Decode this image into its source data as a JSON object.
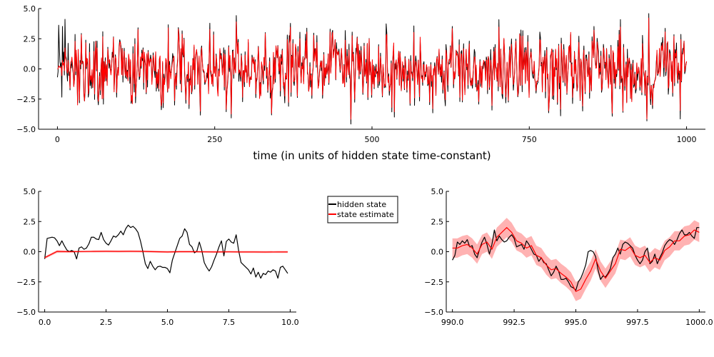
{
  "colors": {
    "hidden_state": "#000000",
    "state_estimate": "#ff0000",
    "band": "#ff0000"
  },
  "chart_data": [
    {
      "id": "top",
      "type": "line",
      "title": "",
      "xlabel": "time (in units of hidden state time-constant)",
      "ylabel": "",
      "xlim": [
        -30,
        1030
      ],
      "ylim": [
        -5,
        5
      ],
      "xticks": [
        0,
        250,
        500,
        750,
        1000
      ],
      "xtick_labels": [
        "0",
        "250",
        "500",
        "750",
        "1000"
      ],
      "yticks": [
        -5,
        -2.5,
        0,
        2.5,
        5
      ],
      "ytick_labels": [
        "−5.0",
        "−2.5",
        "0.0",
        "2.5",
        "5.0"
      ],
      "grid": false,
      "series": [
        {
          "name": "hidden state",
          "generator": "noise",
          "x_start": 0,
          "x_end": 1000,
          "n": 1000,
          "amplitude": 1.55,
          "seed": 7
        },
        {
          "name": "state estimate",
          "generator": "filtered",
          "x_start": 0,
          "x_end": 1000,
          "n": 1000,
          "warmup": 25
        }
      ]
    },
    {
      "id": "bottom-left",
      "type": "line",
      "title": "",
      "xlabel": "",
      "ylabel": "",
      "xlim": [
        -0.25,
        10.25
      ],
      "ylim": [
        -5,
        5
      ],
      "xticks": [
        0,
        2.5,
        5,
        7.5,
        10
      ],
      "xtick_labels": [
        "0.0",
        "2.5",
        "5.0",
        "7.5",
        "10.0"
      ],
      "yticks": [
        -5,
        -2.5,
        0,
        2.5,
        5
      ],
      "ytick_labels": [
        "−5.0",
        "−2.5",
        "0.0",
        "2.5",
        "5.0"
      ],
      "grid": false,
      "legend": {
        "position": "outside-top-right",
        "entries": [
          "hidden state",
          "state estimate"
        ]
      },
      "series": [
        {
          "name": "hidden state",
          "x": [
            0.0,
            0.1,
            0.2,
            0.3,
            0.4,
            0.5,
            0.6,
            0.7,
            0.8,
            0.9,
            1.0,
            1.1,
            1.2,
            1.3,
            1.4,
            1.5,
            1.6,
            1.7,
            1.8,
            1.9,
            2.0,
            2.1,
            2.2,
            2.3,
            2.4,
            2.5,
            2.6,
            2.7,
            2.8,
            2.9,
            3.0,
            3.1,
            3.2,
            3.3,
            3.4,
            3.5,
            3.6,
            3.7,
            3.8,
            3.9,
            4.0,
            4.1,
            4.2,
            4.3,
            4.4,
            4.5,
            4.6,
            4.7,
            4.8,
            4.9,
            5.0,
            5.1,
            5.2,
            5.3,
            5.4,
            5.5,
            5.6,
            5.7,
            5.8,
            5.9,
            6.0,
            6.1,
            6.2,
            6.3,
            6.4,
            6.5,
            6.6,
            6.7,
            6.8,
            6.9,
            7.0,
            7.1,
            7.2,
            7.3,
            7.4,
            7.5,
            7.6,
            7.7,
            7.8,
            7.9,
            8.0,
            8.1,
            8.2,
            8.3,
            8.4,
            8.5,
            8.6,
            8.7,
            8.8,
            8.9,
            9.0,
            9.1,
            9.2,
            9.3,
            9.4,
            9.5,
            9.6,
            9.7,
            9.8,
            9.9
          ],
          "values": [
            -0.6,
            1.1,
            1.15,
            1.2,
            1.15,
            0.9,
            0.5,
            0.9,
            0.5,
            0.15,
            0.0,
            0.1,
            0.0,
            -0.6,
            0.3,
            0.4,
            0.2,
            0.3,
            0.65,
            1.2,
            1.2,
            1.05,
            1.0,
            1.6,
            1.0,
            0.7,
            0.55,
            0.9,
            1.3,
            1.2,
            1.4,
            1.7,
            1.4,
            1.9,
            2.2,
            2.0,
            2.1,
            1.9,
            1.6,
            0.9,
            0.0,
            -1.0,
            -1.4,
            -0.8,
            -1.2,
            -1.5,
            -1.25,
            -1.2,
            -1.3,
            -1.3,
            -1.4,
            -1.75,
            -0.7,
            -0.1,
            0.5,
            1.1,
            1.3,
            1.9,
            1.6,
            0.6,
            0.4,
            -0.1,
            0.05,
            0.8,
            0.1,
            -0.9,
            -1.3,
            -1.6,
            -1.25,
            -0.7,
            -0.2,
            0.4,
            0.9,
            -0.35,
            0.85,
            1.05,
            0.8,
            0.7,
            1.4,
            0.1,
            -0.9,
            -1.1,
            -1.3,
            -1.5,
            -1.85,
            -1.35,
            -2.1,
            -1.7,
            -2.2,
            -1.8,
            -1.9,
            -1.6,
            -1.7,
            -1.5,
            -1.6,
            -2.2,
            -1.3,
            -1.2,
            -1.5,
            -1.8
          ]
        },
        {
          "name": "state estimate",
          "x": [
            0.0,
            0.5,
            1.0,
            1.5,
            2.0,
            2.5,
            3.0,
            3.5,
            4.0,
            4.5,
            5.0,
            5.5,
            6.0,
            6.5,
            7.0,
            7.5,
            8.0,
            8.5,
            9.0,
            9.5,
            9.9
          ],
          "values": [
            -0.5,
            0.02,
            0.0,
            0.01,
            0.02,
            0.03,
            0.02,
            0.03,
            0.02,
            0.0,
            -0.02,
            0.0,
            0.0,
            -0.01,
            -0.02,
            -0.01,
            -0.02,
            -0.02,
            -0.03,
            -0.02,
            -0.02
          ],
          "lower": [
            -0.6,
            -0.1,
            -0.08,
            -0.07,
            -0.06,
            -0.05,
            -0.06,
            -0.05,
            -0.06,
            -0.08,
            -0.1,
            -0.08,
            -0.08,
            -0.09,
            -0.1,
            -0.09,
            -0.1,
            -0.1,
            -0.11,
            -0.1,
            -0.1
          ],
          "upper": [
            -0.4,
            0.12,
            0.08,
            0.09,
            0.1,
            0.11,
            0.1,
            0.11,
            0.1,
            0.08,
            0.06,
            0.08,
            0.08,
            0.07,
            0.06,
            0.07,
            0.06,
            0.06,
            0.05,
            0.06,
            0.06
          ]
        }
      ]
    },
    {
      "id": "bottom-right",
      "type": "line",
      "title": "",
      "xlabel": "",
      "ylabel": "",
      "xlim": [
        989.75,
        1000.25
      ],
      "ylim": [
        -5,
        5
      ],
      "xticks": [
        990,
        992.5,
        995,
        997.5,
        1000
      ],
      "xtick_labels": [
        "990.0",
        "992.5",
        "995.0",
        "997.5",
        "1000.0"
      ],
      "yticks": [
        -5,
        -2.5,
        0,
        2.5,
        5
      ],
      "ytick_labels": [
        "−5.0",
        "−2.5",
        "0.0",
        "2.5",
        "5.0"
      ],
      "grid": false,
      "series": [
        {
          "name": "hidden state",
          "x": [
            990.0,
            990.1,
            990.2,
            990.3,
            990.4,
            990.5,
            990.6,
            990.7,
            990.8,
            990.9,
            991.0,
            991.1,
            991.2,
            991.3,
            991.4,
            991.5,
            991.6,
            991.7,
            991.8,
            991.9,
            992.0,
            992.1,
            992.2,
            992.3,
            992.4,
            992.5,
            992.6,
            992.7,
            992.8,
            992.9,
            993.0,
            993.1,
            993.2,
            993.3,
            993.4,
            993.5,
            993.6,
            993.7,
            993.8,
            993.9,
            994.0,
            994.1,
            994.2,
            994.3,
            994.4,
            994.5,
            994.6,
            994.7,
            994.8,
            994.9,
            995.0,
            995.1,
            995.2,
            995.3,
            995.4,
            995.5,
            995.6,
            995.7,
            995.8,
            995.9,
            996.0,
            996.1,
            996.2,
            996.3,
            996.4,
            996.5,
            996.6,
            996.7,
            996.8,
            996.9,
            997.0,
            997.1,
            997.2,
            997.3,
            997.4,
            997.5,
            997.6,
            997.7,
            997.8,
            997.9,
            998.0,
            998.1,
            998.2,
            998.3,
            998.4,
            998.5,
            998.6,
            998.7,
            998.8,
            998.9,
            999.0,
            999.1,
            999.2,
            999.3,
            999.4,
            999.5,
            999.6,
            999.7,
            999.8,
            999.9,
            1000.0
          ],
          "values": [
            -0.7,
            -0.3,
            0.8,
            0.6,
            0.9,
            0.7,
            1.0,
            0.4,
            0.5,
            -0.2,
            -0.5,
            0.2,
            0.8,
            1.2,
            0.6,
            -0.2,
            0.6,
            1.8,
            0.9,
            1.3,
            1.0,
            0.8,
            0.9,
            1.2,
            1.4,
            1.1,
            0.4,
            0.5,
            0.6,
            0.2,
            0.9,
            0.6,
            0.2,
            -0.2,
            -0.3,
            -0.8,
            -0.5,
            -0.9,
            -1.0,
            -1.5,
            -2.0,
            -1.7,
            -1.2,
            -1.6,
            -2.3,
            -2.3,
            -2.2,
            -2.5,
            -2.9,
            -3.0,
            -3.2,
            -2.5,
            -2.2,
            -1.7,
            -1.1,
            0.0,
            0.1,
            0.0,
            -0.4,
            -1.5,
            -2.3,
            -2.0,
            -2.1,
            -1.8,
            -1.4,
            -0.5,
            -0.2,
            0.3,
            -0.2,
            0.6,
            0.8,
            0.7,
            0.5,
            0.3,
            -0.3,
            -0.7,
            -1.0,
            -0.7,
            0.0,
            0.3,
            -1.0,
            -0.8,
            -0.2,
            -1.0,
            -0.5,
            -0.1,
            0.5,
            0.8,
            1.0,
            0.9,
            0.6,
            1.0,
            1.5,
            1.8,
            1.4,
            1.4,
            1.6,
            1.3,
            1.1,
            2.0,
            2.0
          ]
        },
        {
          "name": "state estimate",
          "x": [
            990.0,
            990.2,
            990.4,
            990.6,
            990.8,
            991.0,
            991.2,
            991.4,
            991.6,
            991.8,
            992.0,
            992.2,
            992.4,
            992.6,
            992.8,
            993.0,
            993.2,
            993.4,
            993.6,
            993.8,
            994.0,
            994.2,
            994.4,
            994.6,
            994.8,
            995.0,
            995.2,
            995.4,
            995.6,
            995.8,
            996.0,
            996.2,
            996.4,
            996.6,
            996.8,
            997.0,
            997.2,
            997.4,
            997.6,
            997.8,
            998.0,
            998.2,
            998.4,
            998.6,
            998.8,
            999.0,
            999.2,
            999.4,
            999.6,
            999.8,
            1000.0
          ],
          "values": [
            0.3,
            0.3,
            0.5,
            0.6,
            0.3,
            -0.2,
            0.6,
            0.8,
            0.2,
            1.2,
            1.6,
            2.0,
            1.6,
            0.9,
            0.7,
            0.3,
            0.5,
            -0.3,
            -0.5,
            -1.1,
            -1.5,
            -1.4,
            -1.8,
            -2.1,
            -2.5,
            -3.3,
            -3.1,
            -2.3,
            -1.6,
            -0.6,
            -1.6,
            -2.2,
            -1.6,
            -1.0,
            0.2,
            0.1,
            0.4,
            -0.3,
            -0.5,
            -0.3,
            -0.9,
            -0.5,
            -0.7,
            0.1,
            0.4,
            0.9,
            0.9,
            1.3,
            1.4,
            1.8,
            1.6
          ],
          "lower": [
            -0.5,
            -0.5,
            -0.3,
            -0.2,
            -0.5,
            -1.0,
            -0.2,
            0.0,
            -0.6,
            0.4,
            0.8,
            1.2,
            0.8,
            0.1,
            -0.1,
            -0.5,
            -0.3,
            -1.1,
            -1.3,
            -1.9,
            -2.3,
            -2.2,
            -2.6,
            -2.9,
            -3.3,
            -4.1,
            -3.9,
            -3.1,
            -2.4,
            -1.4,
            -2.4,
            -3.0,
            -2.4,
            -1.8,
            -0.6,
            -0.7,
            -0.4,
            -1.1,
            -1.3,
            -1.1,
            -1.7,
            -1.3,
            -1.5,
            -0.7,
            -0.4,
            0.1,
            0.1,
            0.5,
            0.6,
            1.0,
            0.8
          ],
          "upper": [
            1.1,
            1.1,
            1.3,
            1.4,
            1.1,
            0.6,
            1.4,
            1.6,
            1.0,
            2.0,
            2.4,
            2.8,
            2.4,
            1.7,
            1.5,
            1.1,
            1.3,
            0.5,
            0.3,
            -0.3,
            -0.7,
            -0.6,
            -1.0,
            -1.3,
            -1.7,
            -2.5,
            -2.3,
            -1.5,
            -0.8,
            0.2,
            -0.8,
            -1.4,
            -0.8,
            -0.2,
            1.0,
            0.9,
            1.2,
            0.5,
            0.3,
            0.5,
            -0.1,
            0.3,
            0.1,
            0.9,
            1.2,
            1.7,
            1.7,
            2.1,
            2.2,
            2.6,
            2.4
          ]
        }
      ]
    }
  ]
}
